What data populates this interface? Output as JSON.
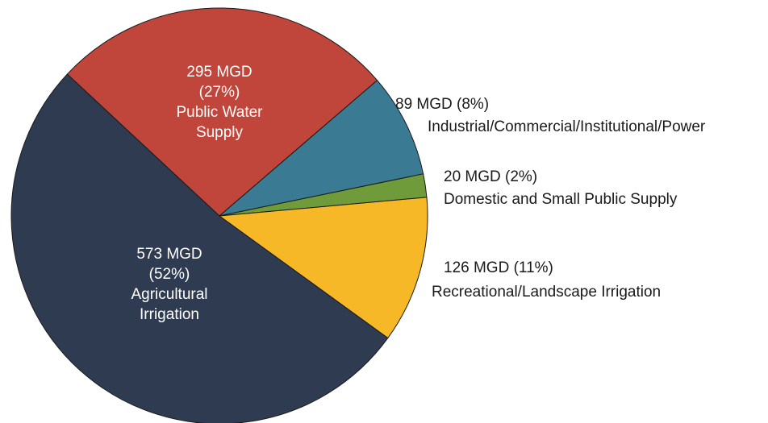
{
  "chart_data": {
    "type": "pie",
    "categories": [
      "Agricultural Irrigation",
      "Public Water Supply",
      "Industrial/Commercial/Institutional/Power",
      "Domestic and Small Public Supply",
      "Recreational/Landscape Irrigation"
    ],
    "values": [
      573,
      295,
      89,
      20,
      126
    ],
    "value_labels": [
      "573 MGD (52%)",
      "295 MGD (27%)",
      "89 MGD (8%)",
      "20 MGD (2%)",
      "126 MGD (11%)"
    ],
    "colors": [
      "#2e3b51",
      "#c0463b",
      "#3a7b93",
      "#6f9b3b",
      "#f6b826"
    ]
  }
}
